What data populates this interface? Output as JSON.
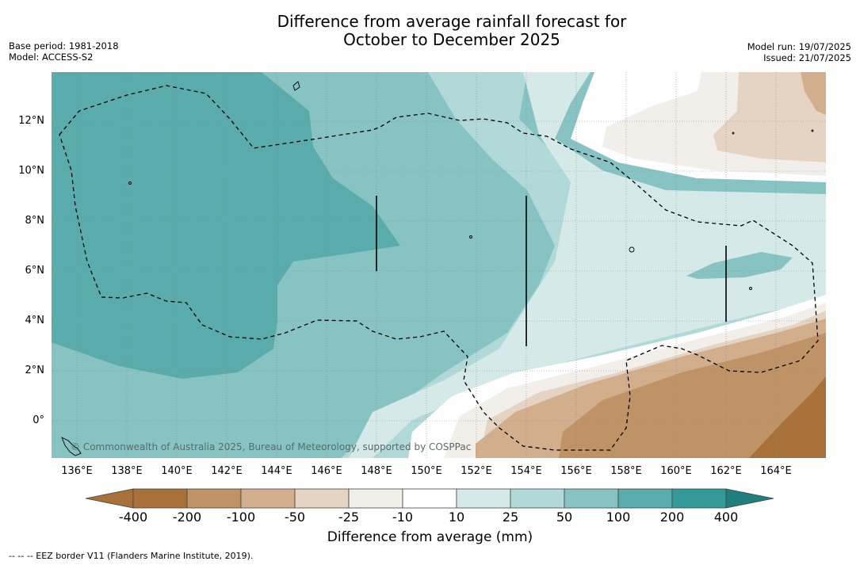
{
  "title_line1": "Difference from average rainfall forecast for",
  "title_line2": "October to December 2025",
  "base_period": "Base period: 1981-2018",
  "model": "Model: ACCESS-S2",
  "model_run": "Model run: 19/07/2025",
  "issued": "Issued: 21/07/2025",
  "copyright": "© Commonwealth of Australia 2025, Bureau of Meteorology, supported by COSPPac",
  "footnote": "-- -- -- EEZ border V11 (Flanders Marine Institute, 2019).",
  "colors": {
    "dry_400": "#a8713a",
    "dry_200": "#bf9365",
    "dry_100": "#d2ae8c",
    "dry_50": "#e5d3c3",
    "dry_25": "#f2eee9",
    "neutral": "#ffffff",
    "wet_10": "#d5e9e8",
    "wet_25": "#b0d9d8",
    "wet_50": "#86c3c2",
    "wet_100": "#5aabab",
    "wet_200": "#339a99",
    "wet_400": "#1f7e7e"
  },
  "map": {
    "lon_range": [
      135,
      166
    ],
    "lat_range": [
      -1.5,
      14
    ],
    "lon_ticks": [
      "136°E",
      "138°E",
      "140°E",
      "142°E",
      "144°E",
      "146°E",
      "148°E",
      "150°E",
      "152°E",
      "154°E",
      "156°E",
      "158°E",
      "160°E",
      "162°E",
      "164°E"
    ],
    "lat_ticks": [
      "12°N",
      "10°N",
      "8°N",
      "6°N",
      "4°N",
      "2°N",
      "0°"
    ]
  },
  "colorbar": {
    "labels": [
      "-400",
      "-200",
      "-100",
      "-50",
      "-25",
      "-10",
      "10",
      "25",
      "50",
      "100",
      "200",
      "400"
    ],
    "title": "Difference from average (mm)"
  }
}
